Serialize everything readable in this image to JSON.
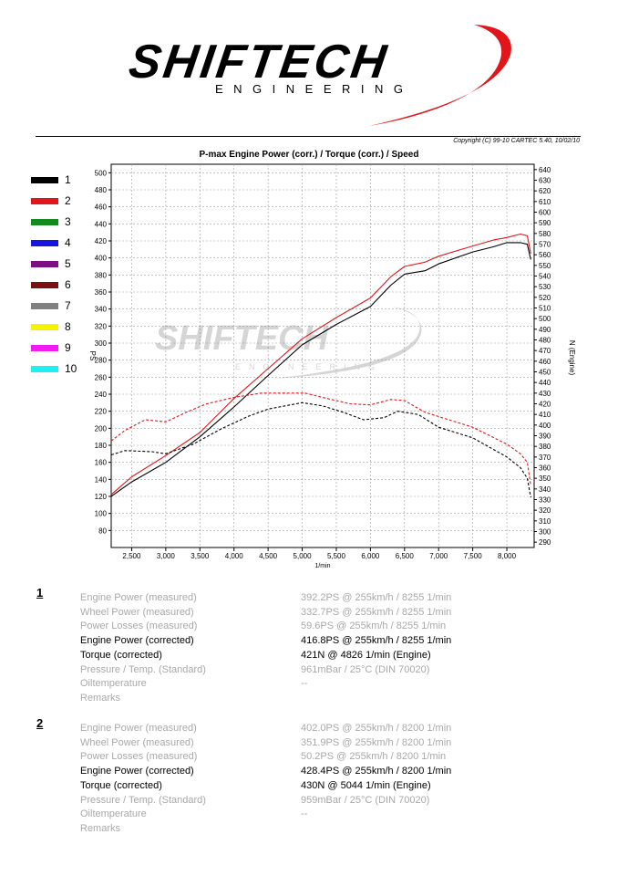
{
  "header": {
    "brand": "SHIFTECH",
    "brand_sub": "ENGINEERING",
    "copyright": "Copyright (C) 99-10 CARTEC 5.40, 10/02/10",
    "accent_color": "#e0161b"
  },
  "chart_data": {
    "type": "line",
    "title": "P-max Engine Power (corr.) / Torque (corr.) / Speed",
    "xlabel": "1/min",
    "ylabel_left": "PS",
    "ylabel_right": "N (Engine)",
    "xlim": [
      2200,
      8400
    ],
    "ylim_left": [
      60,
      510
    ],
    "ylim_right": [
      285,
      645
    ],
    "x_ticks": [
      2500,
      3000,
      3500,
      4000,
      4500,
      5000,
      5500,
      6000,
      6500,
      7000,
      7500,
      8000
    ],
    "x_tick_labels": [
      "2,500",
      "3,000",
      "3,500",
      "4,000",
      "4,500",
      "5,000",
      "5,500",
      "6,000",
      "6,500",
      "7,000",
      "7,500",
      "8,000"
    ],
    "y_left_ticks": [
      80,
      100,
      120,
      140,
      160,
      180,
      200,
      220,
      240,
      260,
      280,
      300,
      320,
      340,
      360,
      380,
      400,
      420,
      440,
      460,
      480,
      500
    ],
    "y_right_ticks": [
      290,
      300,
      310,
      320,
      330,
      340,
      350,
      360,
      370,
      380,
      390,
      400,
      410,
      420,
      430,
      440,
      450,
      460,
      470,
      480,
      490,
      500,
      510,
      520,
      530,
      540,
      550,
      560,
      570,
      580,
      590,
      600,
      610,
      620,
      630,
      640
    ],
    "grid": true,
    "legend_position": "left",
    "legend": [
      {
        "label": "1",
        "color": "#000000"
      },
      {
        "label": "2",
        "color": "#e0161b"
      },
      {
        "label": "3",
        "color": "#138a1d"
      },
      {
        "label": "4",
        "color": "#1616e0"
      },
      {
        "label": "5",
        "color": "#7d0f82"
      },
      {
        "label": "6",
        "color": "#7a1010"
      },
      {
        "label": "7",
        "color": "#808080"
      },
      {
        "label": "8",
        "color": "#f4f400"
      },
      {
        "label": "9",
        "color": "#f21cf2"
      },
      {
        "label": "10",
        "color": "#1cf0f0"
      }
    ],
    "series": [
      {
        "name": "1",
        "axis": "left",
        "dashed": false,
        "color": "#000000",
        "points": [
          [
            2200,
            120
          ],
          [
            2500,
            137
          ],
          [
            3000,
            160
          ],
          [
            3500,
            190
          ],
          [
            4000,
            225
          ],
          [
            4500,
            262
          ],
          [
            5000,
            298
          ],
          [
            5500,
            322
          ],
          [
            6000,
            343
          ],
          [
            6300,
            368
          ],
          [
            6500,
            381
          ],
          [
            6800,
            385
          ],
          [
            7000,
            393
          ],
          [
            7500,
            407
          ],
          [
            7800,
            413
          ],
          [
            8000,
            418
          ],
          [
            8200,
            418
          ],
          [
            8300,
            416
          ],
          [
            8350,
            398
          ]
        ]
      },
      {
        "name": "2",
        "axis": "left",
        "dashed": false,
        "color": "#e0161b",
        "points": [
          [
            2200,
            122
          ],
          [
            2500,
            143
          ],
          [
            3000,
            168
          ],
          [
            3500,
            195
          ],
          [
            4000,
            235
          ],
          [
            4500,
            270
          ],
          [
            5000,
            305
          ],
          [
            5500,
            330
          ],
          [
            6000,
            353
          ],
          [
            6300,
            378
          ],
          [
            6500,
            390
          ],
          [
            6800,
            395
          ],
          [
            7000,
            402
          ],
          [
            7500,
            414
          ],
          [
            7800,
            421
          ],
          [
            8000,
            424
          ],
          [
            8200,
            428
          ],
          [
            8300,
            426
          ],
          [
            8350,
            405
          ]
        ]
      },
      {
        "name": "1",
        "axis": "right",
        "dashed": true,
        "color": "#000000",
        "points": [
          [
            2200,
            372
          ],
          [
            2400,
            376
          ],
          [
            2800,
            375
          ],
          [
            3000,
            373
          ],
          [
            3400,
            382
          ],
          [
            3800,
            396
          ],
          [
            4200,
            408
          ],
          [
            4500,
            415
          ],
          [
            5000,
            421
          ],
          [
            5300,
            418
          ],
          [
            5600,
            412
          ],
          [
            5900,
            405
          ],
          [
            6200,
            407
          ],
          [
            6400,
            413
          ],
          [
            6700,
            410
          ],
          [
            7000,
            398
          ],
          [
            7500,
            388
          ],
          [
            8000,
            370
          ],
          [
            8200,
            360
          ],
          [
            8300,
            350
          ],
          [
            8350,
            332
          ]
        ]
      },
      {
        "name": "2",
        "axis": "right",
        "dashed": true,
        "color": "#e0161b",
        "points": [
          [
            2200,
            385
          ],
          [
            2400,
            395
          ],
          [
            2700,
            405
          ],
          [
            3000,
            403
          ],
          [
            3300,
            412
          ],
          [
            3600,
            420
          ],
          [
            4000,
            426
          ],
          [
            4400,
            430
          ],
          [
            4800,
            430
          ],
          [
            5044,
            430
          ],
          [
            5300,
            426
          ],
          [
            5700,
            420
          ],
          [
            6000,
            419
          ],
          [
            6300,
            424
          ],
          [
            6500,
            423
          ],
          [
            6800,
            412
          ],
          [
            7000,
            408
          ],
          [
            7500,
            398
          ],
          [
            8000,
            382
          ],
          [
            8200,
            373
          ],
          [
            8300,
            365
          ],
          [
            8350,
            343
          ]
        ]
      }
    ]
  },
  "results": [
    {
      "run": "1",
      "rows": [
        {
          "label": "Engine Power (measured)",
          "value": "392.2PS @ 255km/h / 8255 1/min",
          "bold": false
        },
        {
          "label": "Wheel Power (measured)",
          "value": "332.7PS @ 255km/h / 8255 1/min",
          "bold": false
        },
        {
          "label": "Power Losses (measured)",
          "value": "59.6PS @ 255km/h / 8255 1/min",
          "bold": false
        },
        {
          "label": "Engine Power (corrected)",
          "value": "416.8PS @ 255km/h / 8255 1/min",
          "bold": true
        },
        {
          "label": "Torque (corrected)",
          "value": "421N @ 4826 1/min (Engine)",
          "bold": true
        },
        {
          "label": "Pressure / Temp. (Standard)",
          "value": "961mBar / 25°C    (DIN 70020)",
          "bold": false
        },
        {
          "label": "Oiltemperature",
          "value": "--",
          "bold": false
        },
        {
          "label": "Remarks",
          "value": "",
          "bold": false
        }
      ]
    },
    {
      "run": "2",
      "rows": [
        {
          "label": "Engine Power (measured)",
          "value": "402.0PS @ 255km/h / 8200 1/min",
          "bold": false
        },
        {
          "label": "Wheel Power (measured)",
          "value": "351.9PS @ 255km/h / 8200 1/min",
          "bold": false
        },
        {
          "label": "Power Losses (measured)",
          "value": "50.2PS @ 255km/h / 8200 1/min",
          "bold": false
        },
        {
          "label": "Engine Power (corrected)",
          "value": "428.4PS @ 255km/h / 8200 1/min",
          "bold": true
        },
        {
          "label": "Torque (corrected)",
          "value": "430N @ 5044 1/min (Engine)",
          "bold": true
        },
        {
          "label": "Pressure / Temp. (Standard)",
          "value": "959mBar / 25°C    (DIN 70020)",
          "bold": false
        },
        {
          "label": "Oiltemperature",
          "value": "--",
          "bold": false
        },
        {
          "label": "Remarks",
          "value": "",
          "bold": false
        }
      ]
    }
  ]
}
